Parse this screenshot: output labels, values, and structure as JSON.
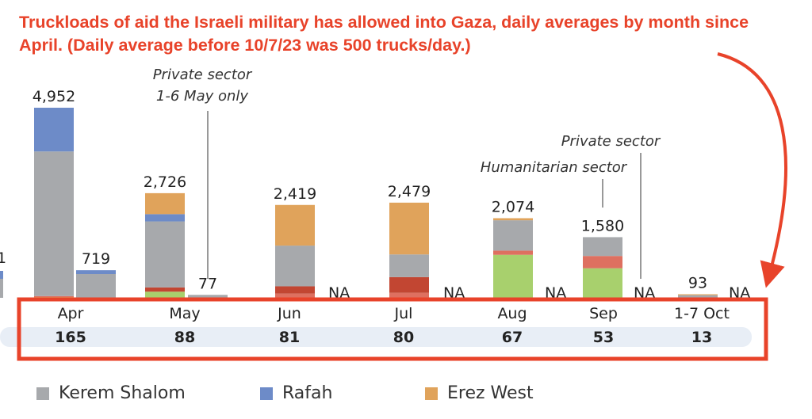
{
  "title": "Truckloads of aid the Israeli military has allowed into Gaza, daily averages by month since April. (Daily average before 10/7/23 was 500 trucks/day.)",
  "colors": {
    "kerem_shalom": "#a7a9ac",
    "rafah": "#6d8bc8",
    "erez_west": "#e0a35b",
    "green": "#a8d06d",
    "salmon": "#de7060",
    "dark_red": "#c24632",
    "highlight": "#e8432a",
    "band": "#e8eef6"
  },
  "chart_data": {
    "type": "bar",
    "categories": [
      "Apr",
      "May",
      "Jun",
      "Jul",
      "Aug",
      "Sep",
      "1-7 Oct"
    ],
    "daily_averages": [
      "165",
      "88",
      "81",
      "80",
      "67",
      "53",
      "13"
    ],
    "series": [
      {
        "name": "Kerem Shalom",
        "color": "#a7a9ac"
      },
      {
        "name": "Rafah",
        "color": "#6d8bc8"
      },
      {
        "name": "Erez West",
        "color": "#e0a35b"
      }
    ],
    "bars": [
      {
        "category": "Apr",
        "kind": "humanitarian",
        "total": 4952,
        "label": "4,952",
        "segments": [
          {
            "color": "#e0a35b",
            "value": 20
          },
          {
            "color": "#de7060",
            "value": 25
          },
          {
            "color": "#a7a9ac",
            "value": 3767
          },
          {
            "color": "#6d8bc8",
            "value": 1140
          }
        ]
      },
      {
        "category": "Apr",
        "kind": "private",
        "total": 719,
        "label": "719",
        "segments": [
          {
            "color": "#a7a9ac",
            "value": 619
          },
          {
            "color": "#6d8bc8",
            "value": 100
          }
        ]
      },
      {
        "category": "May",
        "kind": "humanitarian",
        "total": 2726,
        "label": "2,726",
        "segments": [
          {
            "color": "#a8d06d",
            "value": 160
          },
          {
            "color": "#c24632",
            "value": 110
          },
          {
            "color": "#a7a9ac",
            "value": 1720
          },
          {
            "color": "#6d8bc8",
            "value": 190
          },
          {
            "color": "#e0a35b",
            "value": 546
          }
        ]
      },
      {
        "category": "May",
        "kind": "private",
        "total": 77,
        "label": "77",
        "segments": [
          {
            "color": "#a7a9ac",
            "value": 77
          }
        ]
      },
      {
        "category": "Jun",
        "kind": "humanitarian",
        "total": 2419,
        "label": "2,419",
        "segments": [
          {
            "color": "#de7060",
            "value": 110
          },
          {
            "color": "#c24632",
            "value": 190
          },
          {
            "color": "#a7a9ac",
            "value": 1060
          },
          {
            "color": "#e0a35b",
            "value": 1059
          }
        ]
      },
      {
        "category": "Jun",
        "kind": "private",
        "total": null,
        "label": "NA",
        "segments": []
      },
      {
        "category": "Jul",
        "kind": "humanitarian",
        "total": 2479,
        "label": "2,479",
        "segments": [
          {
            "color": "#de7060",
            "value": 130
          },
          {
            "color": "#c24632",
            "value": 410
          },
          {
            "color": "#a7a9ac",
            "value": 590
          },
          {
            "color": "#e0a35b",
            "value": 1349
          }
        ]
      },
      {
        "category": "Jul",
        "kind": "private",
        "total": null,
        "label": "NA",
        "segments": []
      },
      {
        "category": "Aug",
        "kind": "humanitarian",
        "total": 2074,
        "label": "2,074",
        "segments": [
          {
            "color": "#a8d06d",
            "value": 1120
          },
          {
            "color": "#de7060",
            "value": 110
          },
          {
            "color": "#a7a9ac",
            "value": 790
          },
          {
            "color": "#e0a35b",
            "value": 54
          }
        ]
      },
      {
        "category": "Aug",
        "kind": "private",
        "total": null,
        "label": "NA",
        "segments": []
      },
      {
        "category": "Sep",
        "kind": "humanitarian",
        "total": 1580,
        "label": "1,580",
        "segments": [
          {
            "color": "#a8d06d",
            "value": 770
          },
          {
            "color": "#de7060",
            "value": 320
          },
          {
            "color": "#a7a9ac",
            "value": 490
          }
        ]
      },
      {
        "category": "Sep",
        "kind": "private",
        "total": null,
        "label": "NA",
        "segments": []
      },
      {
        "category": "1-7 Oct",
        "kind": "humanitarian",
        "total": 93,
        "label": "93",
        "segments": [
          {
            "color": "#a7a9ac",
            "value": 70
          },
          {
            "color": "#e0a35b",
            "value": 23
          }
        ]
      },
      {
        "category": "1-7 Oct",
        "kind": "private",
        "total": null,
        "label": "NA",
        "segments": []
      }
    ],
    "annotations": [
      {
        "lines": [
          "Private sector",
          "1-6 May only"
        ]
      },
      {
        "lines": [
          "Humanitarian sector"
        ]
      },
      {
        "lines": [
          "Private sector"
        ]
      }
    ],
    "partial_left_label": "1",
    "ylim": [
      0,
      5000
    ]
  },
  "legend": [
    {
      "label": "Kerem Shalom",
      "color": "#a7a9ac"
    },
    {
      "label": "Rafah",
      "color": "#6d8bc8"
    },
    {
      "label": "Erez West",
      "color": "#e0a35b"
    }
  ]
}
